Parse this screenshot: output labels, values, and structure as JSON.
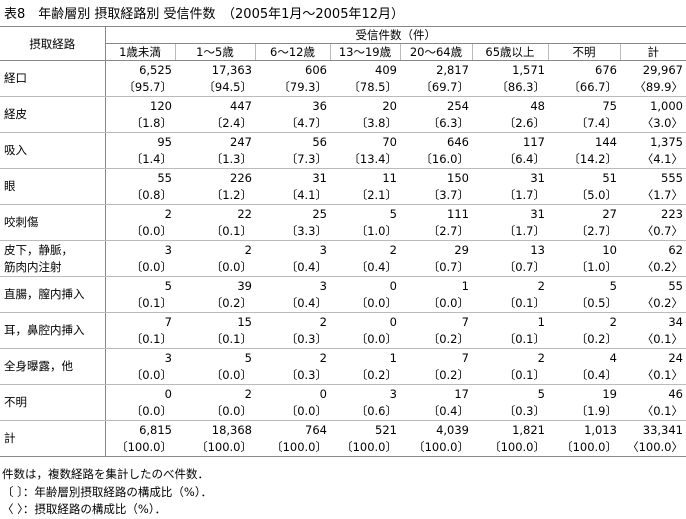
{
  "title": "表8　年齢層別 摂取経路別 受信件数　（2005年1月～2005年12月）",
  "table": {
    "row_header": "摂取経路",
    "group_header": "受信件数（件）",
    "columns": [
      "1歳未満",
      "1～5歳",
      "6～12歳",
      "13～19歳",
      "20～64歳",
      "65歳以上",
      "不明",
      "計"
    ],
    "rows": [
      {
        "label": [
          "経口"
        ],
        "counts": [
          "6,525",
          "17,363",
          "606",
          "409",
          "2,817",
          "1,571",
          "676",
          "29,967"
        ],
        "ratios": [
          "〔95.7〕",
          "〔94.5〕",
          "〔79.3〕",
          "〔78.5〕",
          "〔69.7〕",
          "〔86.3〕",
          "〔66.7〕",
          "〈89.9〉"
        ]
      },
      {
        "label": [
          "経皮"
        ],
        "counts": [
          "120",
          "447",
          "36",
          "20",
          "254",
          "48",
          "75",
          "1,000"
        ],
        "ratios": [
          "〔1.8〕",
          "〔2.4〕",
          "〔4.7〕",
          "〔3.8〕",
          "〔6.3〕",
          "〔2.6〕",
          "〔7.4〕",
          "〈3.0〉"
        ]
      },
      {
        "label": [
          "吸入"
        ],
        "counts": [
          "95",
          "247",
          "56",
          "70",
          "646",
          "117",
          "144",
          "1,375"
        ],
        "ratios": [
          "〔1.4〕",
          "〔1.3〕",
          "〔7.3〕",
          "〔13.4〕",
          "〔16.0〕",
          "〔6.4〕",
          "〔14.2〕",
          "〈4.1〉"
        ]
      },
      {
        "label": [
          "眼"
        ],
        "counts": [
          "55",
          "226",
          "31",
          "11",
          "150",
          "31",
          "51",
          "555"
        ],
        "ratios": [
          "〔0.8〕",
          "〔1.2〕",
          "〔4.1〕",
          "〔2.1〕",
          "〔3.7〕",
          "〔1.7〕",
          "〔5.0〕",
          "〈1.7〉"
        ]
      },
      {
        "label": [
          "咬刺傷"
        ],
        "counts": [
          "2",
          "22",
          "25",
          "5",
          "111",
          "31",
          "27",
          "223"
        ],
        "ratios": [
          "〔0.0〕",
          "〔0.1〕",
          "〔3.3〕",
          "〔1.0〕",
          "〔2.7〕",
          "〔1.7〕",
          "〔2.7〕",
          "〈0.7〉"
        ]
      },
      {
        "label": [
          "皮下，静脈，",
          "筋肉内注射"
        ],
        "counts": [
          "3",
          "2",
          "3",
          "2",
          "29",
          "13",
          "10",
          "62"
        ],
        "ratios": [
          "〔0.0〕",
          "〔0.0〕",
          "〔0.4〕",
          "〔0.4〕",
          "〔0.7〕",
          "〔0.7〕",
          "〔1.0〕",
          "〈0.2〉"
        ]
      },
      {
        "label": [
          "直腸，膣内挿入"
        ],
        "counts": [
          "5",
          "39",
          "3",
          "0",
          "1",
          "2",
          "5",
          "55"
        ],
        "ratios": [
          "〔0.1〕",
          "〔0.2〕",
          "〔0.4〕",
          "〔0.0〕",
          "〔0.0〕",
          "〔0.1〕",
          "〔0.5〕",
          "〈0.2〉"
        ]
      },
      {
        "label": [
          "耳，鼻腔内挿入"
        ],
        "counts": [
          "7",
          "15",
          "2",
          "0",
          "7",
          "1",
          "2",
          "34"
        ],
        "ratios": [
          "〔0.1〕",
          "〔0.1〕",
          "〔0.3〕",
          "〔0.0〕",
          "〔0.2〕",
          "〔0.1〕",
          "〔0.2〕",
          "〈0.1〉"
        ]
      },
      {
        "label": [
          "全身曝露，他"
        ],
        "counts": [
          "3",
          "5",
          "2",
          "1",
          "7",
          "2",
          "4",
          "24"
        ],
        "ratios": [
          "〔0.0〕",
          "〔0.0〕",
          "〔0.3〕",
          "〔0.2〕",
          "〔0.2〕",
          "〔0.1〕",
          "〔0.4〕",
          "〈0.1〉"
        ]
      },
      {
        "label": [
          "不明"
        ],
        "counts": [
          "0",
          "2",
          "0",
          "3",
          "17",
          "5",
          "19",
          "46"
        ],
        "ratios": [
          "〔0.0〕",
          "〔0.0〕",
          "〔0.0〕",
          "〔0.6〕",
          "〔0.4〕",
          "〔0.3〕",
          "〔1.9〕",
          "〈0.1〉"
        ]
      },
      {
        "label": [
          "計"
        ],
        "counts": [
          "6,815",
          "18,368",
          "764",
          "521",
          "4,039",
          "1,821",
          "1,013",
          "33,341"
        ],
        "ratios": [
          "〔100.0〕",
          "〔100.0〕",
          "〔100.0〕",
          "〔100.0〕",
          "〔100.0〕",
          "〔100.0〕",
          "〔100.0〕",
          "〈100.0〉"
        ]
      }
    ]
  },
  "notes": [
    "件数は，複数経路を集計したのべ件数．",
    "〔 〕：年齢層別摂取経路の構成比（%）．",
    "〈 〉：摂取経路の構成比（%）．"
  ]
}
